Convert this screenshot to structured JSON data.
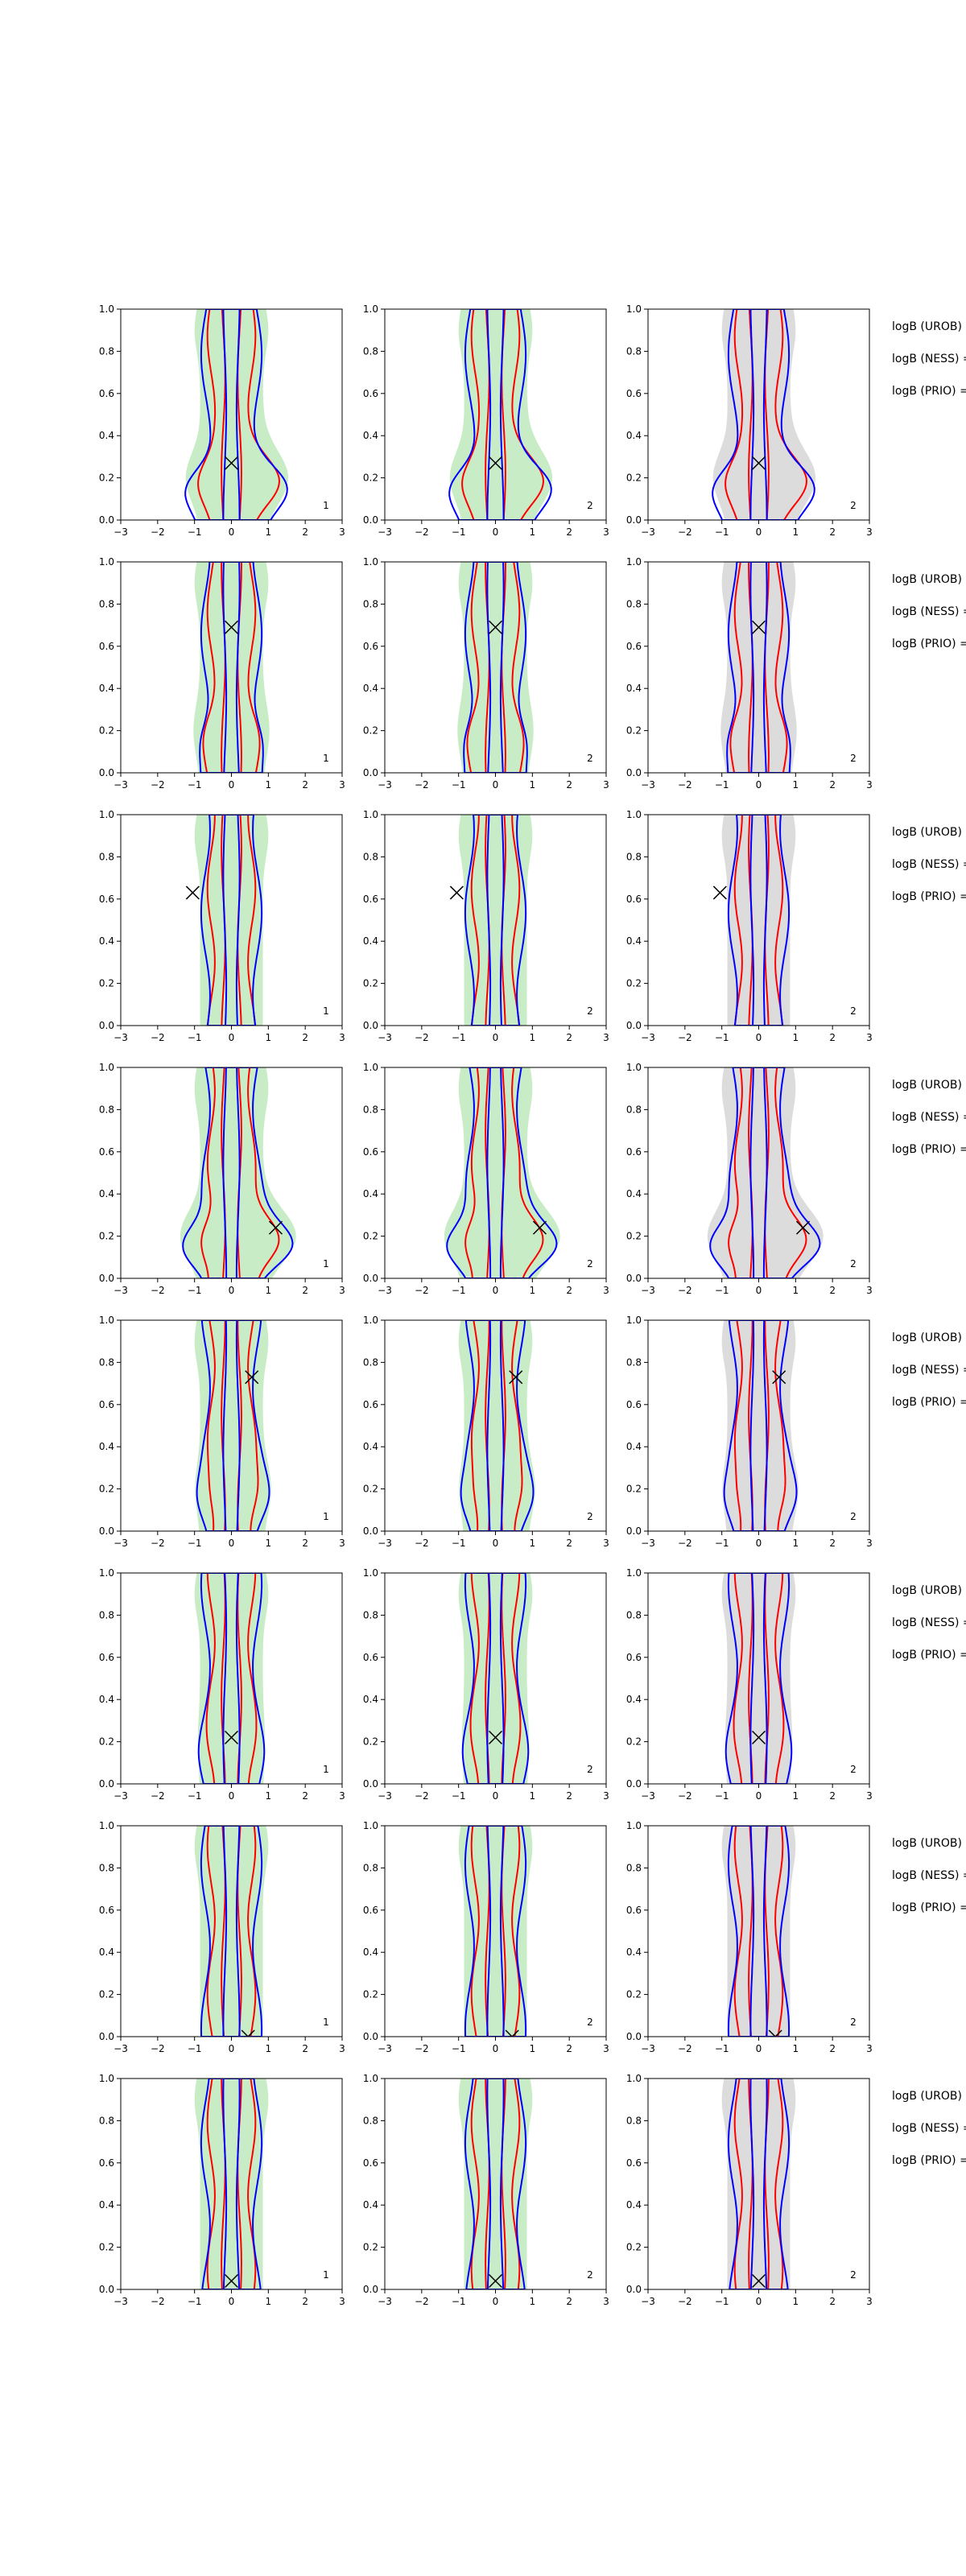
{
  "figure": {
    "row_labels": [
      "logB (UROB) =",
      "logB (NESS) =",
      "logB (PRIO) ="
    ],
    "colors": {
      "filled": "#c8ecc6",
      "gray": "#dcdcdc",
      "red": "#ff0000",
      "blue": "#0000ff",
      "marker": "#000000",
      "axes": "#000000"
    }
  },
  "chart_data": {
    "type": "contour",
    "description_of_panels": "8 rows x 3 columns of 2-D density contour panels",
    "xlim": [
      -3,
      3
    ],
    "ylim": [
      0,
      1
    ],
    "xticks": [
      -3,
      -2,
      -1,
      0,
      1,
      2,
      3
    ],
    "yticks": [
      0.0,
      0.2,
      0.4,
      0.6,
      0.8,
      1.0
    ],
    "xtick_labels": [
      "−3",
      "−2",
      "−1",
      "0",
      "1",
      "2",
      "3"
    ],
    "ytick_labels": [
      "0.0",
      "0.2",
      "0.4",
      "0.6",
      "0.8",
      "1.0"
    ],
    "panel_numbers": [
      "1",
      "2",
      "2"
    ],
    "column_fill": [
      "green",
      "green",
      "gray"
    ],
    "rows": [
      {
        "marker": [
          0.0,
          0.27
        ],
        "skew": 1.0,
        "lowbulge": 0.9
      },
      {
        "marker": [
          0.0,
          0.69
        ],
        "skew": 0.0,
        "lowbulge": 0.3
      },
      {
        "marker": [
          -1.05,
          0.63
        ],
        "skew": 0.0,
        "lowbulge": 0.0
      },
      {
        "marker": [
          1.2,
          0.24
        ],
        "skew": 1.2,
        "lowbulge": 1.2
      },
      {
        "marker": [
          0.55,
          0.73
        ],
        "skew": 0.3,
        "lowbulge": 0.3
      },
      {
        "marker": [
          0.0,
          0.22
        ],
        "skew": 0.0,
        "lowbulge": 0.1
      },
      {
        "marker": [
          0.45,
          0.0
        ],
        "skew": 0.0,
        "lowbulge": 0.0
      },
      {
        "marker": [
          0.0,
          0.04
        ],
        "skew": 0.0,
        "lowbulge": 0.0
      }
    ]
  }
}
